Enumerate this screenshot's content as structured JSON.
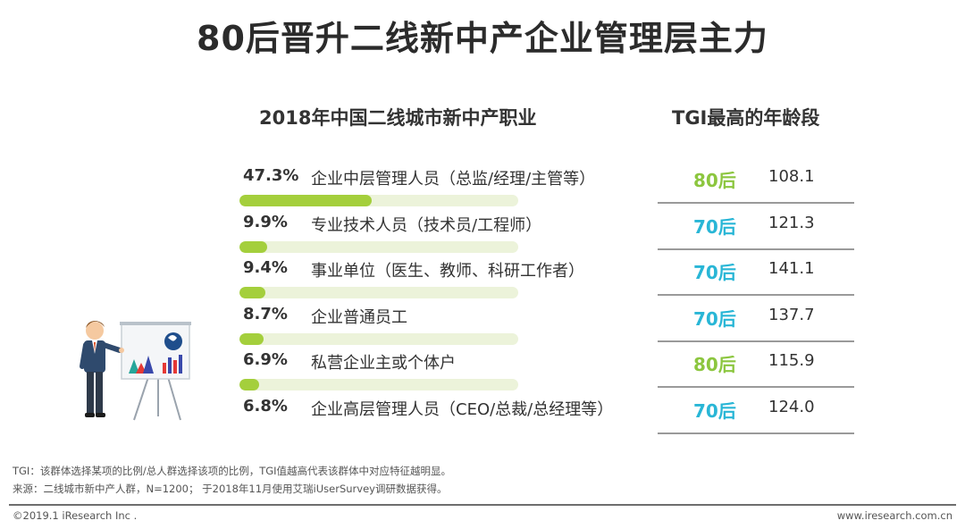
{
  "title": "80后晋升二线新中产企业管理层主力",
  "left_header": "2018年中国二线城市新中产职业",
  "right_header": "TGI最高的年龄段",
  "colors": {
    "bar": "#a4cf3c",
    "track": "#ecf3da",
    "age80": "#8cc63f",
    "age70": "#29b6d6"
  },
  "chart_data": {
    "type": "bar",
    "title": "2018年中国二线城市新中产职业",
    "categories": [
      "企业中层管理人员（总监/经理/主管等）",
      "专业技术人员（技术员/工程师）",
      "事业单位（医生、教师、科研工作者）",
      "企业普通员工",
      "私营企业主或个体户",
      "企业高层管理人员（CEO/总裁/总经理等）"
    ],
    "values": [
      47.3,
      9.9,
      9.4,
      8.7,
      6.9,
      6.8
    ],
    "value_labels": [
      "47.3%",
      "9.9%",
      "9.4%",
      "8.7%",
      "6.9%",
      "6.8%"
    ],
    "unit": "%",
    "xlim": [
      0,
      100
    ],
    "tgi_table": {
      "header": "TGI最高的年龄段",
      "age_groups": [
        "80后",
        "70后",
        "70后",
        "70后",
        "80后",
        "70后"
      ],
      "tgi": [
        "108.1",
        "121.3",
        "141.1",
        "137.7",
        "115.9",
        "124.0"
      ]
    }
  },
  "notes": {
    "tgi_def": "TGI：该群体选择某项的比例/总人群选择该项的比例，TGI值越高代表该群体中对应特征越明显。",
    "source": "来源：二线城市新中产人群，N=1200； 于2018年11月使用艾瑞iUserSurvey调研数据获得。"
  },
  "footer": {
    "copyright": "©2019.1 iResearch Inc .",
    "website": "www.iresearch.com.cn"
  }
}
